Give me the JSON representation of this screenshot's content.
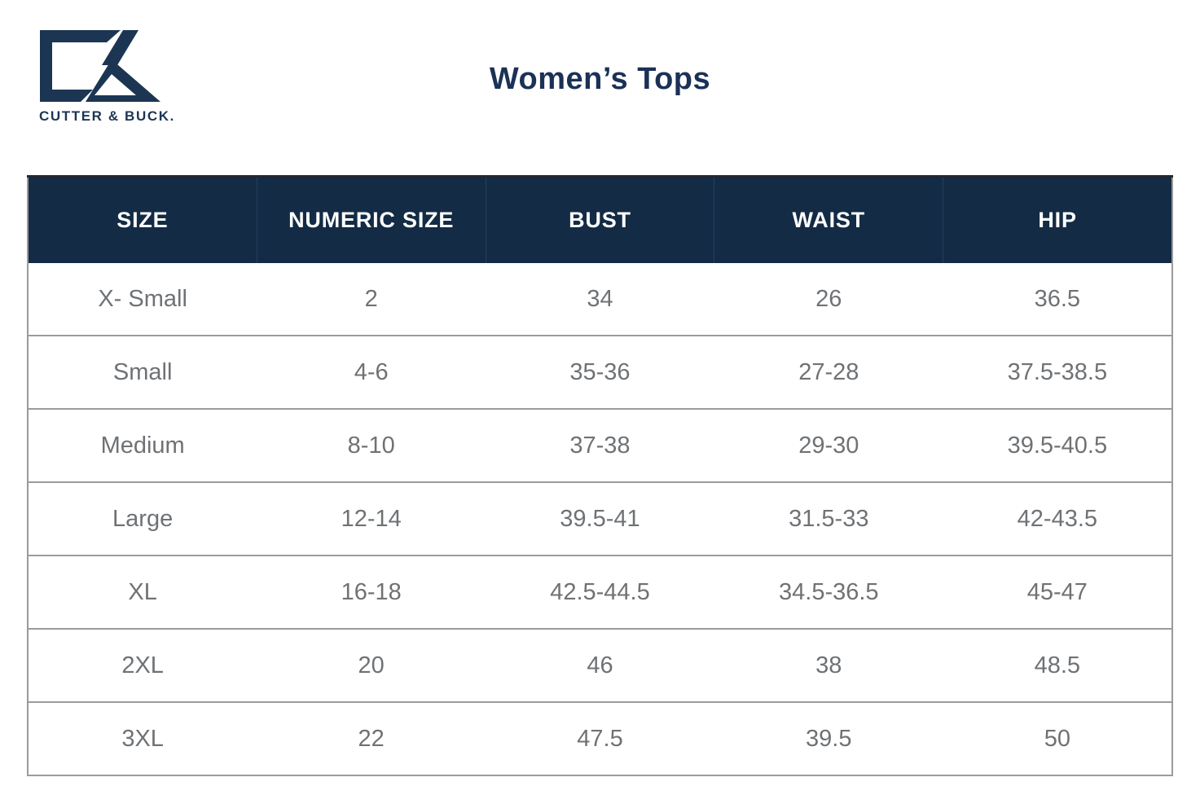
{
  "brand": {
    "name": "Cutter & Buck",
    "wordmark": "CUTTER & BUCK.",
    "logo_color": "#1c3553"
  },
  "page": {
    "title": "Women’s Tops"
  },
  "colors": {
    "header_bg": "#132b44",
    "header_text": "#ffffff",
    "header_divider": "#21415f",
    "header_top_border": "#23282e",
    "title_text": "#1b3156",
    "brand_navy": "#1c3553",
    "cell_text": "#6f7275",
    "row_border": "#9b9b9b",
    "page_bg": "#ffffff"
  },
  "chart_data": {
    "type": "table",
    "title": "Women’s Tops",
    "columns": [
      "SIZE",
      "NUMERIC SIZE",
      "BUST",
      "WAIST",
      "HIP"
    ],
    "rows": [
      [
        "X- Small",
        "2",
        "34",
        "26",
        "36.5"
      ],
      [
        "Small",
        "4-6",
        "35-36",
        "27-28",
        "37.5-38.5"
      ],
      [
        "Medium",
        "8-10",
        "37-38",
        "29-30",
        "39.5-40.5"
      ],
      [
        "Large",
        "12-14",
        "39.5-41",
        "31.5-33",
        "42-43.5"
      ],
      [
        "XL",
        "16-18",
        "42.5-44.5",
        "34.5-36.5",
        "45-47"
      ],
      [
        "2XL",
        "20",
        "46",
        "38",
        "48.5"
      ],
      [
        "3XL",
        "22",
        "47.5",
        "39.5",
        "50"
      ]
    ],
    "layout_hints": {
      "header_style": "dark navy band, white bold uppercase labels",
      "row_separators": "thin gray horizontal rules",
      "column_alignment": "center",
      "grid": "horizontal only"
    }
  }
}
